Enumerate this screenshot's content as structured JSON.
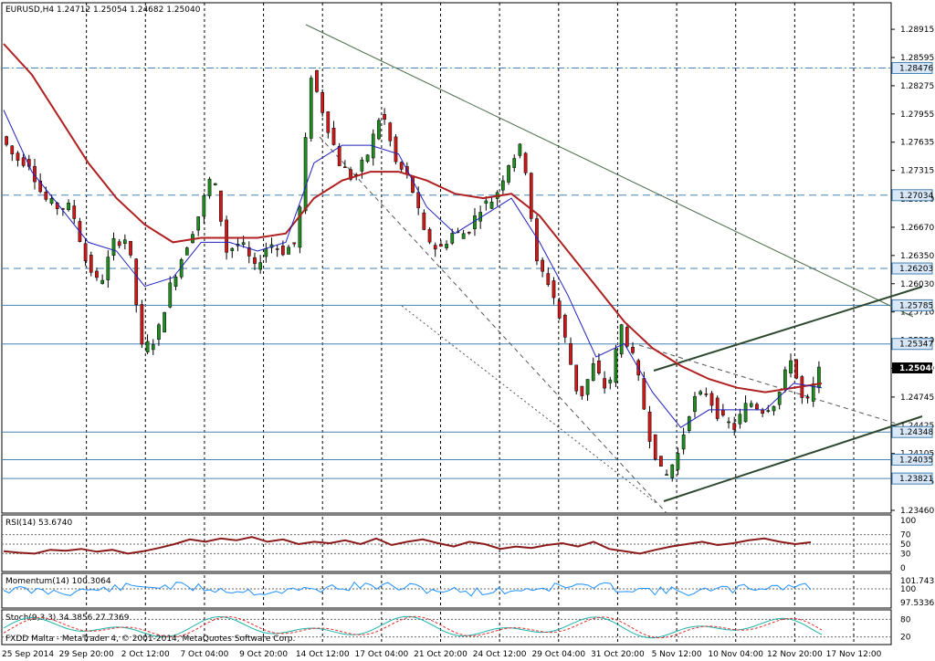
{
  "chart_data": {
    "type": "candlestick",
    "symbol_header": "EURUSD,H4  1.24712 1.25054 1.24682 1.25040",
    "main_panel": {
      "price_ticks": [
        "1.28915",
        "1.28595",
        "1.28275",
        "1.27955",
        "1.27635",
        "1.27315",
        "1.26990",
        "1.26670",
        "1.26350",
        "1.26030",
        "1.25710",
        "1.25390",
        "1.25070",
        "1.24745",
        "1.24425",
        "1.24105",
        "1.23785",
        "1.23460"
      ],
      "ylim": [
        1.2346,
        1.2904
      ],
      "current_price": "1.25040",
      "levels": [
        {
          "price": 1.28476,
          "label": "1.28476",
          "style": "dash-dot"
        },
        {
          "price": 1.27034,
          "label": "1.27034",
          "style": "dash"
        },
        {
          "price": 1.26203,
          "label": "1.26203",
          "style": "dash"
        },
        {
          "price": 1.25785,
          "label": "1.25785",
          "style": "solid"
        },
        {
          "price": 1.25347,
          "label": "1.25347",
          "style": "solid"
        },
        {
          "price": 1.24348,
          "label": "1.24348",
          "style": "solid"
        },
        {
          "price": 1.24035,
          "label": "1.24035",
          "style": "solid"
        },
        {
          "price": 1.23821,
          "label": "1.23821",
          "style": "solid"
        }
      ],
      "path": [
        [
          0,
          1.277
        ],
        [
          5,
          1.2745
        ],
        [
          10,
          1.274
        ],
        [
          15,
          1.27
        ],
        [
          20,
          1.269
        ],
        [
          25,
          1.269
        ],
        [
          30,
          1.263
        ],
        [
          35,
          1.26
        ],
        [
          40,
          1.265
        ],
        [
          45,
          1.2655
        ],
        [
          50,
          1.253
        ],
        [
          55,
          1.254
        ],
        [
          60,
          1.26
        ],
        [
          65,
          1.264
        ],
        [
          70,
          1.268
        ],
        [
          75,
          1.273
        ],
        [
          80,
          1.264
        ],
        [
          85,
          1.265
        ],
        [
          90,
          1.262
        ],
        [
          95,
          1.265
        ],
        [
          100,
          1.264
        ],
        [
          105,
          1.265
        ],
        [
          110,
          1.284
        ],
        [
          115,
          1.279
        ],
        [
          120,
          1.274
        ],
        [
          125,
          1.272
        ],
        [
          130,
          1.275
        ],
        [
          135,
          1.28
        ],
        [
          140,
          1.274
        ],
        [
          145,
          1.272
        ],
        [
          150,
          1.266
        ],
        [
          155,
          1.264
        ],
        [
          160,
          1.266
        ],
        [
          165,
          1.266
        ],
        [
          170,
          1.269
        ],
        [
          175,
          1.27
        ],
        [
          180,
          1.274
        ],
        [
          185,
          1.276
        ],
        [
          190,
          1.2625
        ],
        [
          195,
          1.26
        ],
        [
          200,
          1.254
        ],
        [
          205,
          1.247
        ],
        [
          210,
          1.251
        ],
        [
          215,
          1.248
        ],
        [
          220,
          1.2555
        ],
        [
          225,
          1.251
        ],
        [
          230,
          1.243
        ],
        [
          235,
          1.238
        ],
        [
          240,
          1.241
        ],
        [
          245,
          1.247
        ],
        [
          250,
          1.248
        ],
        [
          255,
          1.245
        ],
        [
          260,
          1.244
        ],
        [
          265,
          1.247
        ],
        [
          270,
          1.246
        ],
        [
          275,
          1.247
        ],
        [
          280,
          1.252
        ],
        [
          285,
          1.246
        ],
        [
          290,
          1.2504
        ]
      ],
      "sma_fast": [
        [
          0,
          1.28
        ],
        [
          10,
          1.273
        ],
        [
          20,
          1.269
        ],
        [
          30,
          1.265
        ],
        [
          40,
          1.264
        ],
        [
          50,
          1.26
        ],
        [
          60,
          1.261
        ],
        [
          70,
          1.265
        ],
        [
          80,
          1.265
        ],
        [
          90,
          1.264
        ],
        [
          100,
          1.265
        ],
        [
          110,
          1.274
        ],
        [
          120,
          1.276
        ],
        [
          130,
          1.276
        ],
        [
          140,
          1.275
        ],
        [
          150,
          1.269
        ],
        [
          160,
          1.266
        ],
        [
          170,
          1.268
        ],
        [
          180,
          1.27
        ],
        [
          190,
          1.265
        ],
        [
          200,
          1.259
        ],
        [
          210,
          1.252
        ],
        [
          220,
          1.2535
        ],
        [
          230,
          1.248
        ],
        [
          240,
          1.244
        ],
        [
          250,
          1.246
        ],
        [
          260,
          1.246
        ],
        [
          270,
          1.246
        ],
        [
          280,
          1.249
        ],
        [
          290,
          1.2485
        ]
      ],
      "sma_slow": [
        [
          0,
          1.2875
        ],
        [
          10,
          1.284
        ],
        [
          20,
          1.279
        ],
        [
          30,
          1.274
        ],
        [
          40,
          1.27
        ],
        [
          50,
          1.267
        ],
        [
          60,
          1.265
        ],
        [
          70,
          1.2655
        ],
        [
          80,
          1.2655
        ],
        [
          90,
          1.2655
        ],
        [
          100,
          1.266
        ],
        [
          110,
          1.27
        ],
        [
          120,
          1.272
        ],
        [
          130,
          1.273
        ],
        [
          140,
          1.273
        ],
        [
          150,
          1.272
        ],
        [
          160,
          1.2705
        ],
        [
          170,
          1.27
        ],
        [
          180,
          1.2705
        ],
        [
          190,
          1.268
        ],
        [
          200,
          1.264
        ],
        [
          210,
          1.26
        ],
        [
          220,
          1.256
        ],
        [
          230,
          1.253
        ],
        [
          240,
          1.251
        ],
        [
          250,
          1.2495
        ],
        [
          260,
          1.2485
        ],
        [
          270,
          1.248
        ],
        [
          280,
          1.2485
        ],
        [
          290,
          1.249
        ]
      ]
    },
    "x_ticks": [
      "25 Sep 2014",
      "29 Sep 20:00",
      "2 Oct 12:00",
      "7 Oct 04:00",
      "9 Oct 20:00",
      "14 Oct 12:00",
      "17 Oct 04:00",
      "21 Oct 20:00",
      "24 Oct 12:00",
      "29 Oct 04:00",
      "31 Oct 20:00",
      "5 Nov 12:00",
      "10 Nov 04:00",
      "12 Nov 20:00",
      "17 Nov 12:00"
    ],
    "rsi": {
      "label": "RSI(14) 53.6740",
      "levels": [
        "100",
        "70",
        "50",
        "30",
        "0"
      ],
      "values": [
        35,
        32,
        30,
        38,
        36,
        40,
        34,
        38,
        30,
        35,
        42,
        50,
        60,
        55,
        62,
        58,
        65,
        55,
        60,
        50,
        55,
        52,
        58,
        50,
        62,
        48,
        55,
        60,
        52,
        45,
        55,
        50,
        40,
        45,
        42,
        48,
        52,
        45,
        55,
        40,
        35,
        30,
        38,
        45,
        50,
        55,
        48,
        52,
        58,
        62,
        55,
        50,
        54
      ]
    },
    "momentum": {
      "label": "Momentum(14) 100.3064",
      "levels": [
        "101.7433",
        "100",
        "97.5336"
      ]
    },
    "stoch": {
      "label": "Stoch(9,3,3) 34.3856 27.7369",
      "levels": [
        "80",
        "20"
      ]
    },
    "footer": "FXDD Malta - MetaTrader 4, © 2001-2014, MetaQuotes Software Corp."
  }
}
